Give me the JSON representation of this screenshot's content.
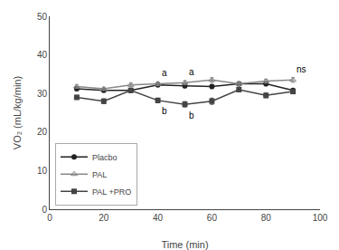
{
  "chart_data": {
    "type": "line",
    "xlabel": "Time (min)",
    "ylabel": "VO₂ (mL/kg/min)",
    "x": [
      10,
      20,
      30,
      40,
      50,
      60,
      70,
      80,
      90
    ],
    "series": [
      {
        "name": "Placbo",
        "color": "#222222",
        "marker": "circle",
        "values": [
          31.2,
          30.8,
          30.8,
          32.2,
          32.0,
          31.8,
          32.5,
          32.5,
          30.8
        ],
        "errors": [
          0.4,
          0.3,
          0.4,
          0.4,
          0.5,
          0.5,
          0.5,
          0.5,
          0.4
        ]
      },
      {
        "name": "PAL",
        "color": "#888888",
        "marker": "triangle-up-open",
        "values": [
          31.8,
          31.2,
          32.2,
          32.5,
          32.8,
          33.5,
          32.5,
          33.2,
          33.5
        ],
        "errors": [
          0.4,
          0.4,
          0.5,
          0.5,
          0.5,
          0.6,
          0.5,
          0.5,
          0.6
        ]
      },
      {
        "name": "PAL +PRO",
        "color": "#444444",
        "marker": "square",
        "values": [
          29.0,
          28.0,
          30.8,
          28.2,
          27.2,
          28.0,
          31.0,
          29.5,
          30.5
        ],
        "errors": [
          0.5,
          0.6,
          0.5,
          0.6,
          0.7,
          0.8,
          0.5,
          0.6,
          0.5
        ]
      }
    ],
    "annotations": [
      {
        "text": "a",
        "x": 40,
        "series": "PAL",
        "position": "above"
      },
      {
        "text": "a",
        "x": 50,
        "series": "PAL",
        "position": "above"
      },
      {
        "text": "ns",
        "x": 90,
        "series": "PAL",
        "position": "above"
      },
      {
        "text": "b",
        "x": 40,
        "series": "PAL +PRO",
        "position": "below"
      },
      {
        "text": "b",
        "x": 50,
        "series": "PAL +PRO",
        "position": "below"
      }
    ],
    "xlim": [
      0,
      100
    ],
    "ylim": [
      0,
      50
    ],
    "xticks": [
      0,
      20,
      40,
      60,
      80,
      100
    ],
    "yticks": [
      0,
      10,
      20,
      30,
      40,
      50
    ],
    "grid": false,
    "legend": "lower left"
  }
}
